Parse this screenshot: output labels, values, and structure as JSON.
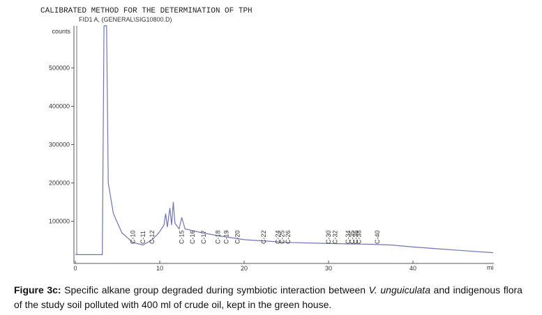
{
  "chart_data": {
    "type": "line",
    "title": "CALIBRATED METHOD FOR THE DETERMINATION OF TPH",
    "subtitle": "FID1 A, (GENERAL\\SIG10800.D)",
    "y_label": "counts",
    "x_label": "mi",
    "color": "#6f74b0",
    "x": [
      0,
      3.2,
      3.4,
      3.7,
      3.9,
      4.5,
      5.5,
      6.8,
      8.0,
      9.0,
      9.9,
      10.5,
      10.7,
      10.9,
      11.2,
      11.4,
      11.6,
      11.8,
      12.3,
      12.6,
      13.0,
      14.0,
      15.0,
      17.0,
      20.0,
      25.0,
      30.0,
      35.0,
      37.5,
      40.0,
      45.0,
      49.5
    ],
    "values": [
      13000,
      13000,
      610000,
      610000,
      200000,
      120000,
      70000,
      45000,
      38000,
      50000,
      70000,
      90000,
      120000,
      85000,
      135000,
      90000,
      150000,
      95000,
      80000,
      110000,
      80000,
      75000,
      70000,
      62000,
      52000,
      45000,
      42000,
      40000,
      38000,
      33000,
      25000,
      18000
    ],
    "xlim": [
      0,
      49.5
    ],
    "ylim": [
      -10000,
      610000
    ],
    "xticks": [
      0,
      10,
      20,
      30,
      40
    ],
    "yticks": [
      100000,
      200000,
      300000,
      400000,
      500000
    ],
    "annotations": [
      {
        "text": "C-10",
        "x": 6.8
      },
      {
        "text": "C-11",
        "x": 8.0
      },
      {
        "text": "C-12",
        "x": 9.1
      },
      {
        "text": "C-15",
        "x": 12.6
      },
      {
        "text": "C-16",
        "x": 13.9
      },
      {
        "text": "C-17",
        "x": 15.2
      },
      {
        "text": "C-18",
        "x": 16.9
      },
      {
        "text": "C-19",
        "x": 17.9
      },
      {
        "text": "C-20",
        "x": 19.2
      },
      {
        "text": "C-22",
        "x": 22.3
      },
      {
        "text": "C-24",
        "x": 24.0
      },
      {
        "text": "C-25",
        "x": 24.5
      },
      {
        "text": "C-26",
        "x": 25.2
      },
      {
        "text": "C-30",
        "x": 30.0
      },
      {
        "text": "C-32",
        "x": 30.8
      },
      {
        "text": "C-34",
        "x": 32.3
      },
      {
        "text": "C-35",
        "x": 32.8
      },
      {
        "text": "C-36",
        "x": 33.2
      },
      {
        "text": "C-38",
        "x": 33.6
      },
      {
        "text": "C-40",
        "x": 35.8
      }
    ]
  },
  "caption": {
    "label": "Figure 3c:",
    "text_before": " Specific alkane group degraded during symbiotic interaction between ",
    "italic": "V. unguiculata",
    "text_after": " and indigenous flora of the study soil polluted with 400 ml of crude oil, kept in the green house."
  }
}
